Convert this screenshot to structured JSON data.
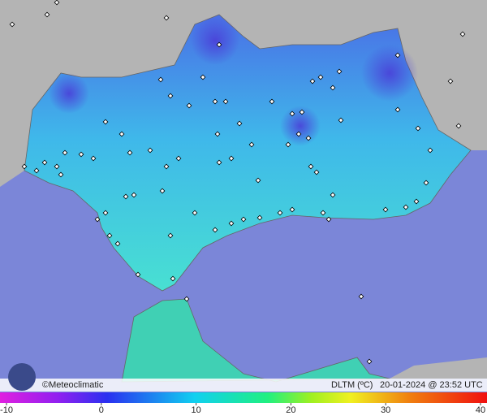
{
  "brand": "©Meteoclimatic",
  "caption": {
    "variable": "DLTM (ºC)",
    "timestamp": "20-01-2024 @ 23:52 UTC"
  },
  "scale": {
    "ticks": [
      -10,
      0,
      10,
      20,
      30,
      40
    ]
  }
}
